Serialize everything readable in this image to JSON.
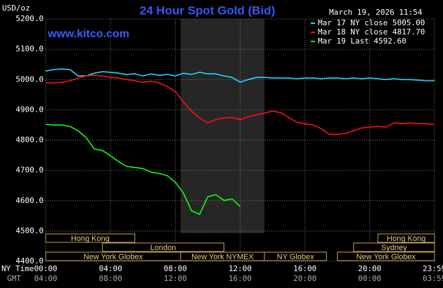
{
  "chart_data": {
    "type": "line",
    "title": "24 Hour Spot Gold (Bid)",
    "website": "www.kitco.com",
    "timestamp": "March 19, 2026 11:54",
    "y_unit": "USD/oz",
    "x_row_label": "NY Time",
    "x2_row_label": "GMT",
    "x": [
      0,
      0.5,
      1,
      1.5,
      2,
      2.5,
      3,
      3.5,
      4,
      4.5,
      5,
      5.5,
      6,
      6.5,
      7,
      7.5,
      8,
      8.5,
      9,
      9.5,
      10,
      10.5,
      11,
      11.5,
      12,
      12.5,
      13,
      13.5,
      14,
      14.5,
      15,
      15.5,
      16,
      16.5,
      17,
      17.5,
      18,
      18.5,
      19,
      19.5,
      20,
      20.5,
      21,
      21.5,
      22,
      22.5,
      23,
      23.5,
      24
    ],
    "xlim": [
      0,
      24
    ],
    "xticks": [
      {
        "value": 0,
        "label": "00:00"
      },
      {
        "value": 4,
        "label": "04:00"
      },
      {
        "value": 8,
        "label": "08:00"
      },
      {
        "value": 12,
        "label": "12:00"
      },
      {
        "value": 16,
        "label": "16:00"
      },
      {
        "value": 20,
        "label": "20:00"
      },
      {
        "value": 23.98,
        "label": "23:59"
      }
    ],
    "x2_tick_labels": [
      "04:00",
      "08:00",
      "12:00",
      "16:00",
      "20:00",
      "00:00",
      "03:59"
    ],
    "ylim": [
      4400,
      5200
    ],
    "yticks": [
      {
        "value": 4400,
        "label": "4400.0"
      },
      {
        "value": 4500,
        "label": "4500.0"
      },
      {
        "value": 4600,
        "label": "4600.0"
      },
      {
        "value": 4700,
        "label": "4700.0"
      },
      {
        "value": 4800,
        "label": "4800.0"
      },
      {
        "value": 4900,
        "label": "4900.0"
      },
      {
        "value": 5000,
        "label": "5000.0"
      },
      {
        "value": 5100,
        "label": "5100.0"
      },
      {
        "value": 5200,
        "label": "5200.0"
      }
    ],
    "grid": true,
    "highlight": {
      "start": 8.33,
      "end": 13.5,
      "color": "#262626"
    },
    "series": [
      {
        "name": "Mar 17 NY close 5005.00",
        "color": "#22d8ff",
        "values": [
          5028,
          5033,
          5035,
          5033,
          5012,
          5012,
          5021,
          5026,
          5024,
          5021,
          5017,
          5019,
          5012,
          5019,
          5014,
          5017,
          5012,
          5021,
          5017,
          5024,
          5019,
          5019,
          5012,
          5007,
          4991,
          5000,
          5007,
          5007,
          5005,
          5005,
          5005,
          5003,
          5005,
          5005,
          5003,
          5005,
          5005,
          5003,
          5005,
          5003,
          5005,
          5003,
          5000,
          5003,
          5000,
          5000,
          4998,
          4996,
          4996
        ]
      },
      {
        "name": "Mar 18 NY close 4817.70",
        "color": "#ff1010",
        "values": [
          4989,
          4989,
          4991,
          4996,
          5005,
          5012,
          5014,
          5012,
          5007,
          5005,
          5000,
          4996,
          4991,
          4994,
          4989,
          4977,
          4961,
          4926,
          4896,
          4873,
          4857,
          4868,
          4873,
          4875,
          4868,
          4877,
          4884,
          4889,
          4896,
          4891,
          4875,
          4859,
          4854,
          4850,
          4838,
          4819,
          4819,
          4822,
          4831,
          4840,
          4843,
          4845,
          4843,
          4857,
          4854,
          4857,
          4854,
          4854,
          4852
        ]
      },
      {
        "name": "Mar 19 Last 4592.60",
        "color": "#10ff10",
        "values": [
          4852,
          4850,
          4850,
          4845,
          4831,
          4808,
          4771,
          4766,
          4748,
          4729,
          4713,
          4710,
          4706,
          4694,
          4690,
          4683,
          4661,
          4625,
          4567,
          4555,
          4613,
          4620,
          4601,
          4606,
          4581,
          null,
          null,
          null,
          null,
          null,
          null,
          null,
          null,
          null,
          null,
          null,
          null,
          null,
          null,
          null,
          null,
          null,
          null,
          null,
          null,
          null,
          null,
          null,
          null
        ]
      }
    ],
    "session_rows": [
      [
        {
          "name": "Hong Kong",
          "start": 0,
          "end": 5.5
        },
        {
          "name": "Hong Kong",
          "start": 20.5,
          "end": 24
        }
      ],
      [
        {
          "name": "London",
          "start": 3.5,
          "end": 11
        },
        {
          "name": "Sydney",
          "start": 19,
          "end": 24
        }
      ],
      [
        {
          "name": "New York Globex",
          "start": 0,
          "end": 8.33
        },
        {
          "name": "New York NYMEX",
          "start": 8.33,
          "end": 13.5
        },
        {
          "name": "NY Globex",
          "start": 13.5,
          "end": 17.33
        },
        {
          "name": "New York Globex",
          "start": 18,
          "end": 24
        }
      ]
    ]
  }
}
